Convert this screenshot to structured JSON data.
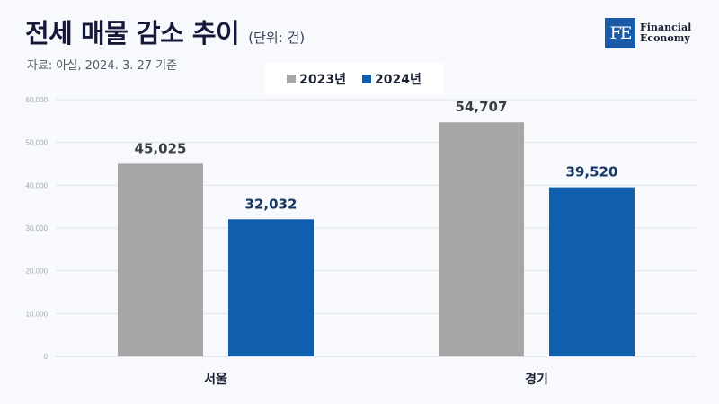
{
  "header": {
    "title": "전세 매물 감소 추이",
    "unit": "(단위: 건)",
    "source": "자료: 아실, 2024. 3. 27 기준"
  },
  "logo": {
    "mark": "FE",
    "line1": "Financial",
    "line2": "Economy"
  },
  "chart_data": {
    "type": "bar",
    "categories": [
      "서울",
      "경기"
    ],
    "series": [
      {
        "name": "2023년",
        "values": [
          45025,
          54707
        ],
        "color": "#a6a6a6"
      },
      {
        "name": "2024년",
        "values": [
          32032,
          39520
        ],
        "color": "#0f5fae"
      }
    ],
    "ylim": [
      0,
      60000
    ],
    "yticks": [
      0,
      10000,
      20000,
      30000,
      40000,
      50000,
      60000
    ],
    "ytick_labels": [
      "0",
      "10,000",
      "20,000",
      "30,000",
      "40,000",
      "50,000",
      "60,000"
    ],
    "data_labels": [
      [
        "45,025",
        "54,707"
      ],
      [
        "32,032",
        "39,520"
      ]
    ],
    "grid": true,
    "legend": "top-center"
  }
}
